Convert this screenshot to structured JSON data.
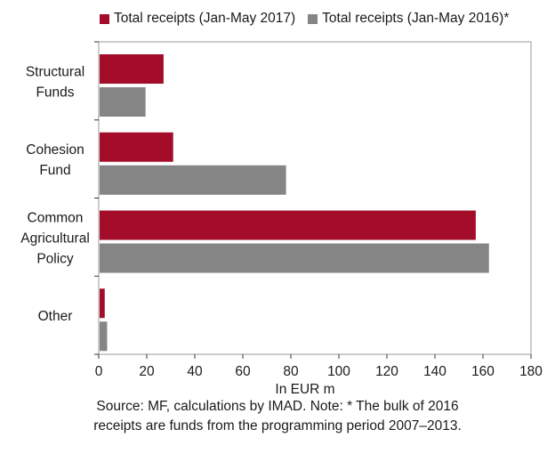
{
  "colors": {
    "series_2017": "#a30d2a",
    "series_2016": "#858585",
    "plot_border": "#9a9a9a",
    "axis": "#333333"
  },
  "chart_data": {
    "type": "bar",
    "orientation": "horizontal",
    "categories": [
      [
        "Structural",
        "Funds"
      ],
      [
        "Cohesion",
        "Fund"
      ],
      [
        "Common",
        "Agricultural",
        "Policy"
      ],
      [
        "Other"
      ]
    ],
    "series": [
      {
        "name": "Total receipts (Jan-May 2017)",
        "color": "#a30d2a",
        "values": [
          27,
          31,
          157,
          2.5
        ]
      },
      {
        "name": "Total receipts (Jan-May 2016)*",
        "color": "#858585",
        "values": [
          19.5,
          78,
          162.5,
          3.5
        ]
      }
    ],
    "xlim": [
      0,
      180
    ],
    "xticks": [
      "0",
      "20",
      "40",
      "60",
      "80",
      "100",
      "120",
      "140",
      "160",
      "180"
    ],
    "xlabel": "In EUR m",
    "legend_position": "top",
    "grid": false
  },
  "source": {
    "line1": "Source: MF, calculations by IMAD. Note: * The bulk of 2016",
    "line2": "receipts are funds from the programming period 2007–2013."
  }
}
